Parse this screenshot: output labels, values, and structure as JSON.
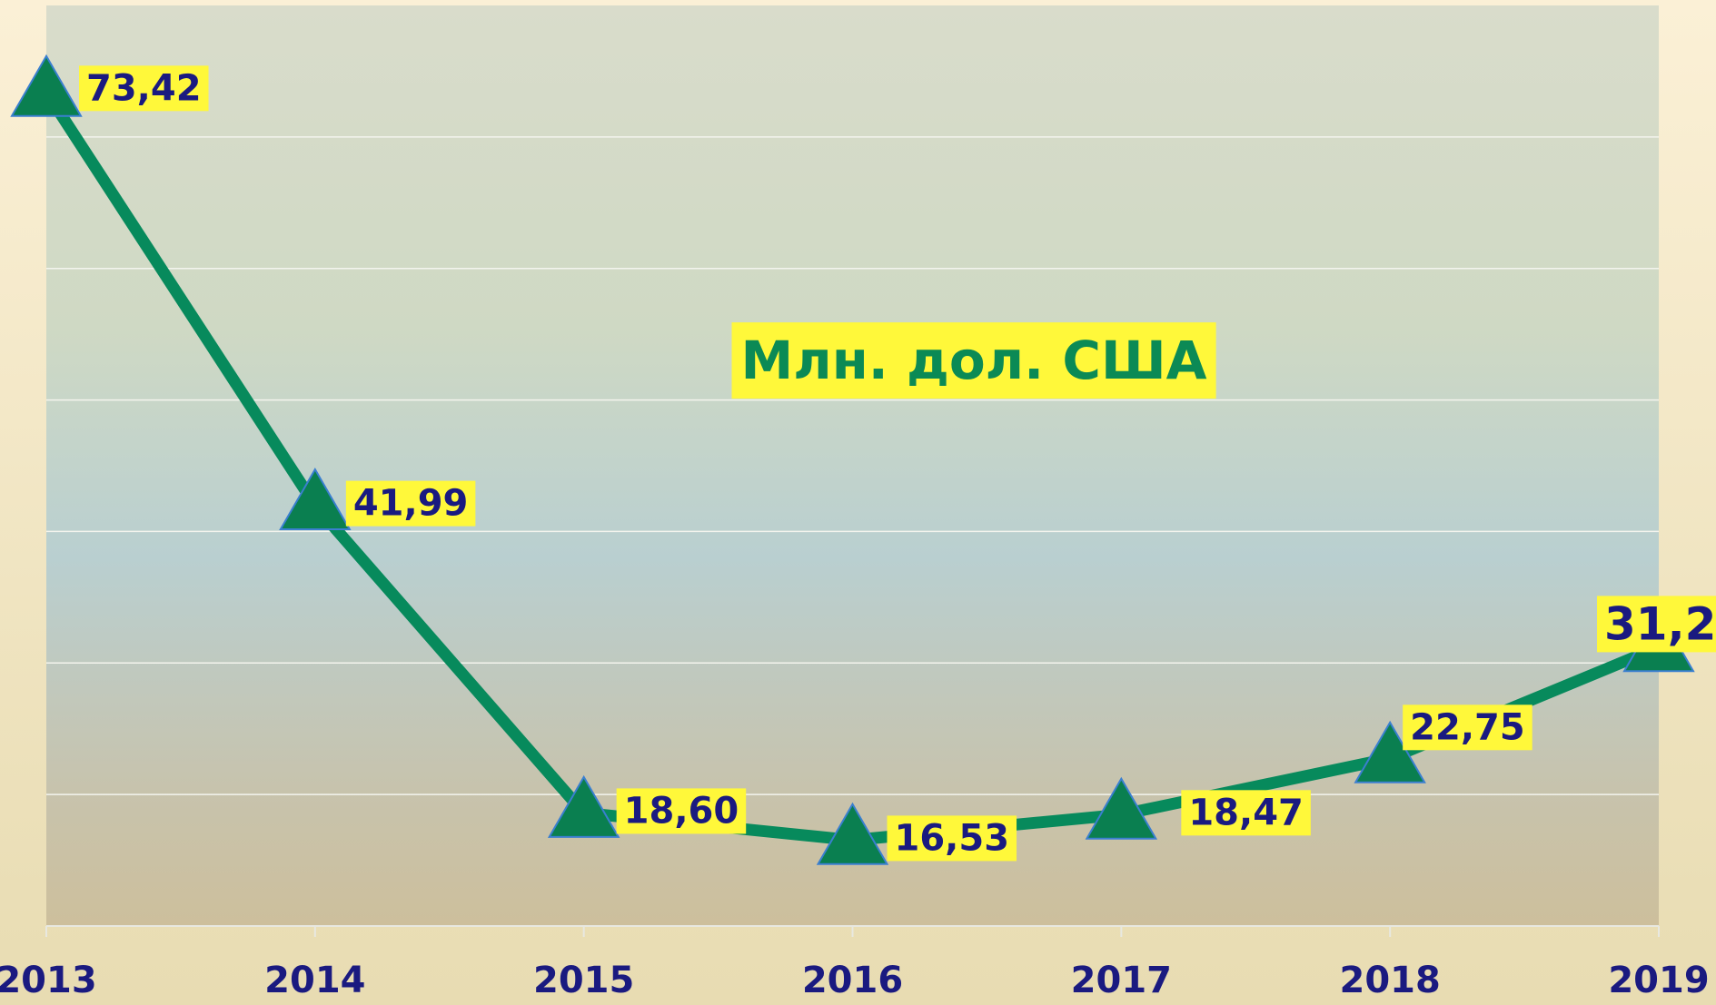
{
  "chart_data": {
    "type": "line",
    "annotation": "Млн. дол. США",
    "categories": [
      "2013",
      "2014",
      "2015",
      "2016",
      "2017",
      "2018",
      "2019"
    ],
    "series": [
      {
        "color": "#078a5c",
        "values": [
          73.42,
          41.99,
          18.6,
          16.53,
          18.47,
          22.75,
          31.2
        ],
        "value_labels": [
          "73,42",
          "41,99",
          "18,60",
          "16,53",
          "18,47",
          "22,75",
          "31,2"
        ]
      }
    ],
    "ylim": [
      10,
      80
    ],
    "yticks": [
      20,
      30,
      40,
      50,
      60,
      70
    ],
    "grid": true
  }
}
